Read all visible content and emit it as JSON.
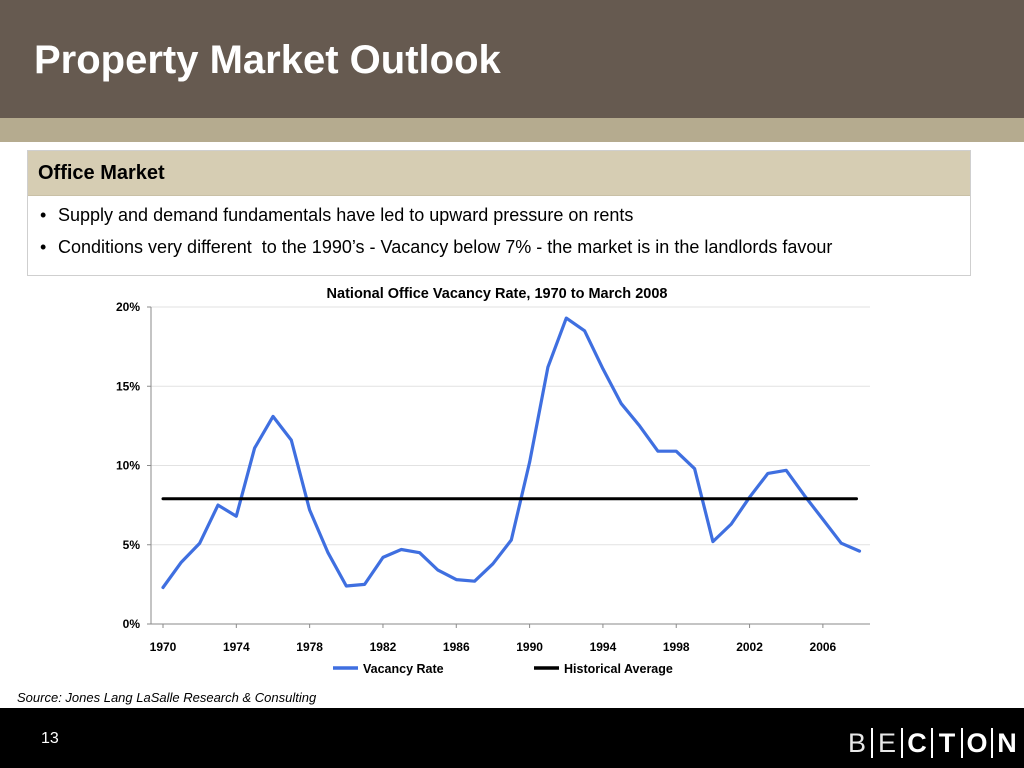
{
  "header": {
    "title": "Property Market Outlook",
    "bar_color": "#665a50",
    "accent_color": "#b5ab8f"
  },
  "office_box": {
    "title": "Office Market",
    "header_color": "#d6cdb3",
    "bullets": [
      "Supply and demand fundamentals have led to upward pressure on rents",
      "Conditions very different  to the 1990’s - Vacancy below 7% - the market is in the landlords favour"
    ]
  },
  "chart_data": {
    "type": "line",
    "title": "National Office Vacancy Rate, 1970 to March 2008",
    "xlabel": "",
    "ylabel": "",
    "xlim": [
      1970,
      2008
    ],
    "ylim": [
      0,
      20
    ],
    "x_ticks": [
      "1970",
      "1974",
      "1978",
      "1982",
      "1986",
      "1990",
      "1994",
      "1998",
      "2002",
      "2006"
    ],
    "y_ticks": [
      "0%",
      "5%",
      "10%",
      "15%",
      "20%"
    ],
    "grid": true,
    "legend_position": "bottom",
    "series": [
      {
        "name": "Vacancy Rate",
        "color": "#3f6fe0",
        "x": [
          1970,
          1971,
          1972,
          1973,
          1974,
          1975,
          1976,
          1977,
          1978,
          1979,
          1980,
          1981,
          1982,
          1983,
          1984,
          1985,
          1986,
          1987,
          1988,
          1989,
          1990,
          1991,
          1992,
          1993,
          1994,
          1995,
          1996,
          1997,
          1998,
          1999,
          2000,
          2001,
          2002,
          2003,
          2004,
          2005,
          2006,
          2007,
          2008
        ],
        "values": [
          2.3,
          3.9,
          5.1,
          7.5,
          6.8,
          11.1,
          13.1,
          11.6,
          7.2,
          4.5,
          2.4,
          2.5,
          4.2,
          4.7,
          4.5,
          3.4,
          2.8,
          2.7,
          3.8,
          5.3,
          10.2,
          16.2,
          19.3,
          18.5,
          16.1,
          13.9,
          12.5,
          10.9,
          10.9,
          9.8,
          5.2,
          6.3,
          8.0,
          9.5,
          9.7,
          8.1,
          6.6,
          5.1,
          4.6
        ]
      },
      {
        "name": "Historical Average",
        "color": "#000000",
        "x": [
          1970,
          2008
        ],
        "values": [
          7.9,
          7.9
        ]
      }
    ]
  },
  "source": "Source: Jones Lang LaSalle Research & Consulting",
  "footer": {
    "page_number": "13",
    "logo_letters": [
      "B",
      "E",
      "C",
      "T",
      "O",
      "N"
    ]
  }
}
